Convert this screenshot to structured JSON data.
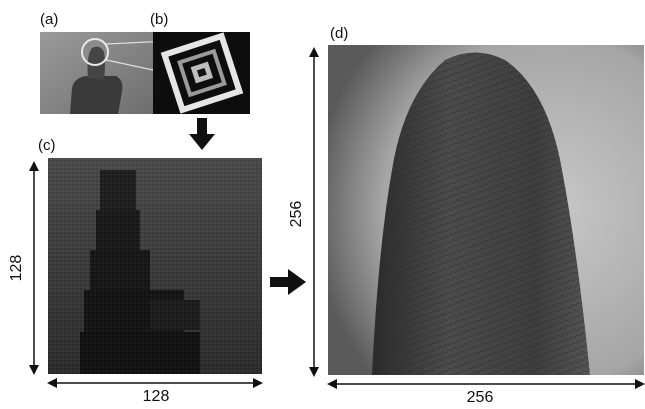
{
  "panels": {
    "a": {
      "label": "(a)"
    },
    "b": {
      "label": "(b)"
    },
    "c": {
      "label": "(c)"
    },
    "d": {
      "label": "(d)"
    }
  },
  "dimensions": {
    "c_height": "128",
    "c_width": "128",
    "d_height": "256",
    "d_width": "256"
  },
  "colors": {
    "arrow": "#111111",
    "panel_b_background": "#0d0d0d",
    "panel_c_background": "#303030",
    "panel_d_background": "#b8b8b8"
  }
}
